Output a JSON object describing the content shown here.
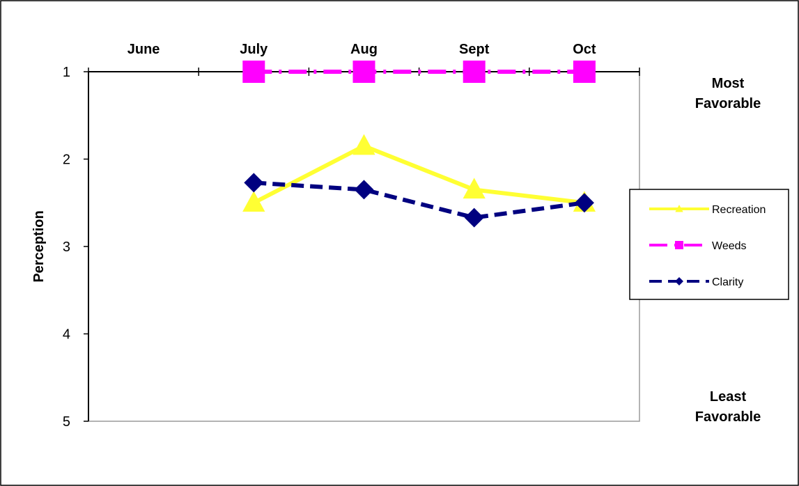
{
  "chart_data": {
    "type": "line",
    "categories": [
      "June",
      "July",
      "Aug",
      "Sept",
      "Oct"
    ],
    "ylabel": "Perception",
    "ylim": [
      1,
      5
    ],
    "y_inverted": true,
    "yticks": [
      1,
      2,
      3,
      4,
      5
    ],
    "x_axis_position": "top",
    "grid": false,
    "legend_position": "right",
    "annotations": {
      "top": [
        "Most",
        "Favorable"
      ],
      "bottom": [
        "Least",
        "Favorable"
      ]
    },
    "series": [
      {
        "name": "Recreation",
        "color": "#ffff33",
        "marker": "triangle",
        "dash": "solid",
        "values": [
          null,
          2.5,
          1.85,
          2.35,
          2.5
        ]
      },
      {
        "name": "Weeds",
        "color": "#ff00ff",
        "marker": "square",
        "dash": "dash-dot",
        "values": [
          null,
          1.0,
          1.0,
          1.0,
          1.0
        ]
      },
      {
        "name": "Clarity",
        "color": "#000080",
        "marker": "diamond",
        "dash": "dashed",
        "values": [
          null,
          2.27,
          2.35,
          2.67,
          2.5
        ]
      }
    ]
  }
}
